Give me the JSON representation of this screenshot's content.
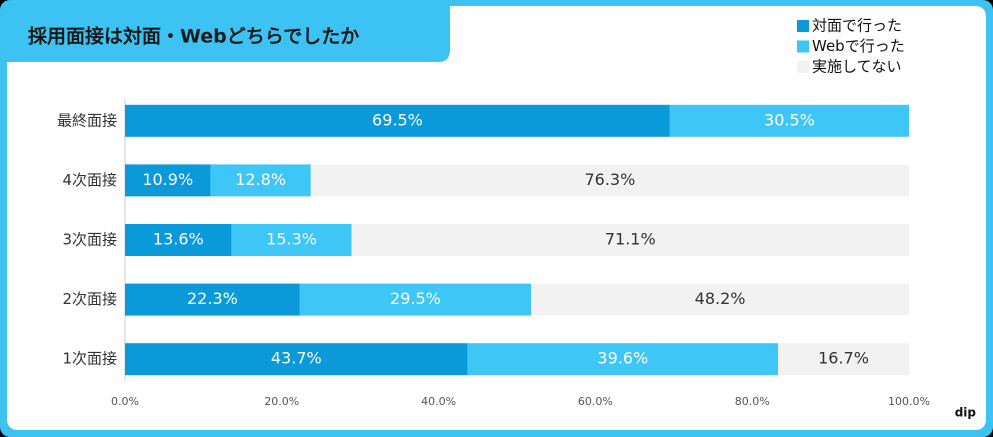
{
  "chart_data": {
    "type": "stacked-bar-horizontal",
    "title": "採用面接は対面・Webどちらでしたか",
    "categories": [
      "最終面接",
      "4次面接",
      "3次面接",
      "2次面接",
      "1次面接"
    ],
    "series": [
      {
        "name": "対面で行った",
        "color": "#0a9ad9",
        "values": [
          69.5,
          10.9,
          13.6,
          22.3,
          43.7
        ],
        "value_labels": [
          "69.5%",
          "10.9%",
          "13.6%",
          "22.3%",
          "43.7%"
        ]
      },
      {
        "name": "Webで行った",
        "color": "#3ec6f7",
        "values": [
          30.5,
          12.8,
          15.3,
          29.5,
          39.6
        ],
        "value_labels": [
          "30.5%",
          "12.8%",
          "15.3%",
          "29.5%",
          "39.6%"
        ]
      },
      {
        "name": "実施してない",
        "color": "#f2f2f2",
        "values": [
          null,
          76.3,
          71.1,
          48.2,
          16.7
        ],
        "value_labels": [
          null,
          "76.3%",
          "71.1%",
          "48.2%",
          "16.7%"
        ]
      }
    ],
    "xlim": [
      0,
      100
    ],
    "xticks": [
      {
        "value": 0,
        "label": "0.0%"
      },
      {
        "value": 20,
        "label": "20.0%"
      },
      {
        "value": 40,
        "label": "40.0%"
      },
      {
        "value": 60,
        "label": "60.0%"
      },
      {
        "value": 80,
        "label": "80.0%"
      },
      {
        "value": 100,
        "label": "100.0%"
      }
    ],
    "legend": "top-right",
    "logo": "dip"
  }
}
